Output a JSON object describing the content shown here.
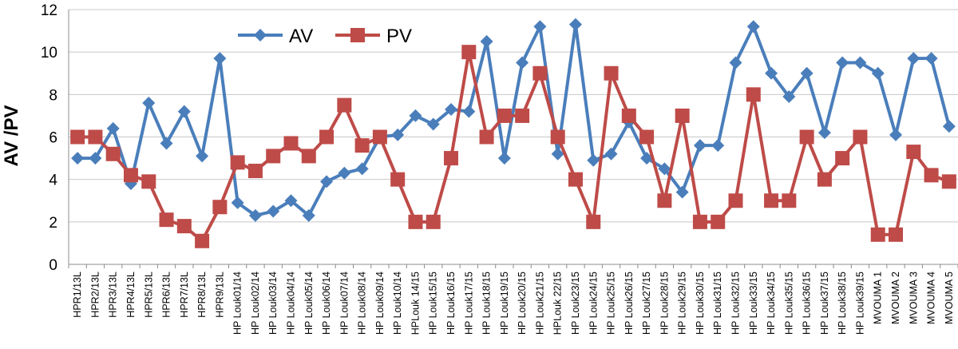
{
  "chart_data": {
    "type": "line",
    "title": "",
    "xlabel": "",
    "ylabel": "AV /PV",
    "ylim": [
      0,
      12
    ],
    "yticks": [
      0,
      2,
      4,
      6,
      8,
      10,
      12
    ],
    "grid": "horizontal",
    "legend_position": "top-left",
    "categories": [
      "HPR1/13L",
      "HPR2/13L",
      "HPR3/13L",
      "HPR4/13L",
      "HPR5/13L",
      "HPR6/13L",
      "HPR7/13L",
      "HPR8/13L",
      "HPR9/13L",
      "HP Louk01/14",
      "HP Louk02/14",
      "HP Louk03/14",
      "HP Louk04/14",
      "HP Louk05/14",
      "HP Louk06/14",
      "HP Louk07/14",
      "HP Louk08/14",
      "HP Louk09/14",
      "HP Louk10/14",
      "HPLouk 14/15",
      "HP Louk15/15",
      "HP Louk16/15",
      "HP Louk17/15",
      "HP Louk18/15",
      "HP Louk19/15",
      "HP Louk20/15",
      "HP Louk21/15",
      "HPLouk 22/15",
      "HP Louk23/15",
      "HP Louk24/15",
      "HP Louk25/15",
      "HP Louk26/15",
      "HP Louk27/15",
      "HP Louk28/15",
      "HP Louk29/15",
      "HP Louk30/15",
      "HP Louk31/15",
      "HP Louk32/15",
      "HP Louk33/15",
      "HP Louk34/15",
      "HP Louk35/15",
      "HP Louk36/15",
      "HP Louk37/15",
      "HP Louk38/15",
      "HP Louk39/15",
      "MVOUMA 1",
      "MVOUMA 2",
      "MVOUMA 3",
      "MVOUMA 4",
      "MVOUMA 5"
    ],
    "series": [
      {
        "name": "AV",
        "color": "#4a7ebb",
        "marker": "diamond",
        "values": [
          5.0,
          5.0,
          6.4,
          3.8,
          7.6,
          5.7,
          7.2,
          5.1,
          9.7,
          2.9,
          2.3,
          2.5,
          3.0,
          2.3,
          3.9,
          4.3,
          4.5,
          6.0,
          6.1,
          7.0,
          6.6,
          7.3,
          7.2,
          10.5,
          5.0,
          9.5,
          11.2,
          5.2,
          11.3,
          4.9,
          5.2,
          6.7,
          5.0,
          4.5,
          3.4,
          5.6,
          5.6,
          9.5,
          11.2,
          9.0,
          7.9,
          9.0,
          6.2,
          9.5,
          9.5,
          9.0,
          6.1,
          9.7,
          9.7,
          6.5
        ]
      },
      {
        "name": "PV",
        "color": "#be4b48",
        "marker": "square",
        "values": [
          6.0,
          6.0,
          5.2,
          4.2,
          3.9,
          2.1,
          1.8,
          1.1,
          2.7,
          4.8,
          4.4,
          5.1,
          5.7,
          5.1,
          6.0,
          7.5,
          5.6,
          6.0,
          4.0,
          2.0,
          2.0,
          5.0,
          10.0,
          6.0,
          7.0,
          7.0,
          9.0,
          6.0,
          4.0,
          2.0,
          9.0,
          7.0,
          6.0,
          3.0,
          7.0,
          2.0,
          2.0,
          3.0,
          8.0,
          3.0,
          3.0,
          6.0,
          4.0,
          5.0,
          6.0,
          1.4,
          1.4,
          5.3,
          4.2,
          3.9
        ]
      }
    ]
  }
}
